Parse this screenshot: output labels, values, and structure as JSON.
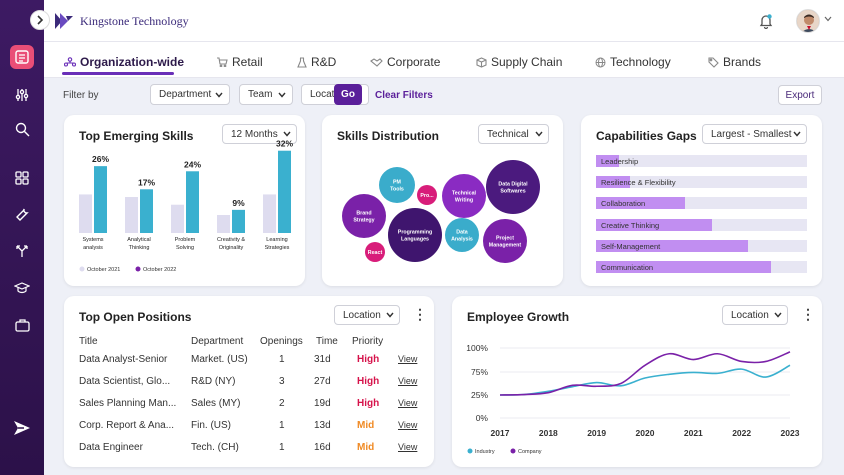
{
  "app": {
    "brand": "Kingstone Technology"
  },
  "tabs": [
    {
      "label": "Organization-wide",
      "active": true,
      "icon": "org-icon"
    },
    {
      "label": "Retail",
      "icon": "cart-icon"
    },
    {
      "label": "R&D",
      "icon": "flask-icon"
    },
    {
      "label": "Corporate",
      "icon": "handshake-icon"
    },
    {
      "label": "Supply Chain",
      "icon": "box-icon"
    },
    {
      "label": "Technology",
      "icon": "globe-icon"
    },
    {
      "label": "Brands",
      "icon": "tag-icon"
    }
  ],
  "filters": {
    "label": "Filter by",
    "department": "Department",
    "team": "Team",
    "location": "Location",
    "go": "Go",
    "clear": "Clear Filters",
    "export": "Export"
  },
  "emerging": {
    "title": "Top Emerging Skills",
    "period": "12 Months",
    "chart_data": {
      "type": "bar",
      "categories": [
        "Systems analysis",
        "Analytical Thinking",
        "Problem Solving",
        "Creativity & Originality",
        "Learning Strategies"
      ],
      "category_lines": [
        [
          "Systems",
          "analysis"
        ],
        [
          "Analytical",
          "Thinking"
        ],
        [
          "Problem",
          "Solving"
        ],
        [
          "Creativity &",
          "Originality"
        ],
        [
          "Learning",
          "Strategies"
        ]
      ],
      "series": [
        {
          "name": "October 2021",
          "values": [
            15,
            14,
            11,
            7,
            15
          ],
          "color": "#dedcef"
        },
        {
          "name": "October 2022",
          "values": [
            26,
            17,
            24,
            9,
            32
          ],
          "color": "#3ab0cf"
        }
      ],
      "data_labels": [
        "26%",
        "17%",
        "24%",
        "9%",
        "32%"
      ],
      "ylim": [
        0,
        35
      ],
      "legend": "bottom"
    }
  },
  "skills": {
    "title": "Skills Distribution",
    "filter": "Technical",
    "bubbles": [
      {
        "label": "PM Tools",
        "color": "#3aaccb"
      },
      {
        "label": "Pro...",
        "color": "#d81d7a"
      },
      {
        "label": "Technical Writing",
        "color": "#8a2bc2"
      },
      {
        "label": "Data Digital Softwares",
        "color": "#4b1a7e"
      },
      {
        "label": "Brand Strategy",
        "color": "#7a21a8"
      },
      {
        "label": "Programming Languages",
        "color": "#3f156e"
      },
      {
        "label": "Data Analysis",
        "color": "#3aaccb"
      },
      {
        "label": "Project Management",
        "color": "#7a21a8"
      },
      {
        "label": "React",
        "color": "#d81d7a"
      }
    ]
  },
  "gaps": {
    "title": "Capabilities Gaps",
    "sort": "Largest - Smallest",
    "items": [
      {
        "label": "Leadership",
        "value": 0.11
      },
      {
        "label": "Resilience & Flexibility",
        "value": 0.16
      },
      {
        "label": "Collaboration",
        "value": 0.42
      },
      {
        "label": "Creative Thinking",
        "value": 0.55
      },
      {
        "label": "Self-Management",
        "value": 0.72
      },
      {
        "label": "Communication",
        "value": 0.83
      }
    ]
  },
  "positions": {
    "title": "Top Open Positions",
    "filter": "Location",
    "headers": [
      "Title",
      "Department",
      "Openings",
      "Time",
      "Priority"
    ],
    "rows": [
      {
        "title": "Data Analyst-Senior",
        "dept": "Market. (US)",
        "openings": "1",
        "time": "31d",
        "priority": "High",
        "action": "View"
      },
      {
        "title": "Data Scientist, Glo...",
        "dept": "R&D (NY)",
        "openings": "3",
        "time": "27d",
        "priority": "High",
        "action": "View"
      },
      {
        "title": "Sales Planning Man...",
        "dept": "Sales (MY)",
        "openings": "2",
        "time": "19d",
        "priority": "High",
        "action": "View"
      },
      {
        "title": "Corp. Report & Ana...",
        "dept": "Fin. (US)",
        "openings": "1",
        "time": "13d",
        "priority": "Mid",
        "action": "View"
      },
      {
        "title": "Data Engineer",
        "dept": "Tech. (CH)",
        "openings": "1",
        "time": "16d",
        "priority": "Mid",
        "action": "View"
      }
    ]
  },
  "growth": {
    "title": "Employee Growth",
    "filter": "Location",
    "chart_data": {
      "type": "line",
      "x": [
        2017,
        2017.5,
        2018,
        2018.5,
        2019,
        2019.5,
        2020,
        2020.5,
        2021,
        2021.5,
        2022,
        2022.5,
        2023
      ],
      "series": [
        {
          "name": "Industry",
          "color": "#3ab0cf",
          "values": [
            25,
            26,
            33,
            43,
            52,
            45,
            62,
            70,
            74,
            72,
            78,
            64,
            82
          ]
        },
        {
          "name": "Company",
          "color": "#7a21a8",
          "values": [
            25,
            26,
            30,
            46,
            44,
            50,
            82,
            94,
            88,
            94,
            86,
            86,
            96
          ]
        }
      ],
      "y_ticks": [
        "100%",
        "75%",
        "25%",
        "0%"
      ],
      "x_ticks": [
        "2017",
        "2018",
        "2019",
        "2020",
        "2021",
        "2022",
        "2023"
      ],
      "ylim": [
        0,
        100
      ],
      "legend": "bottom-left"
    }
  }
}
